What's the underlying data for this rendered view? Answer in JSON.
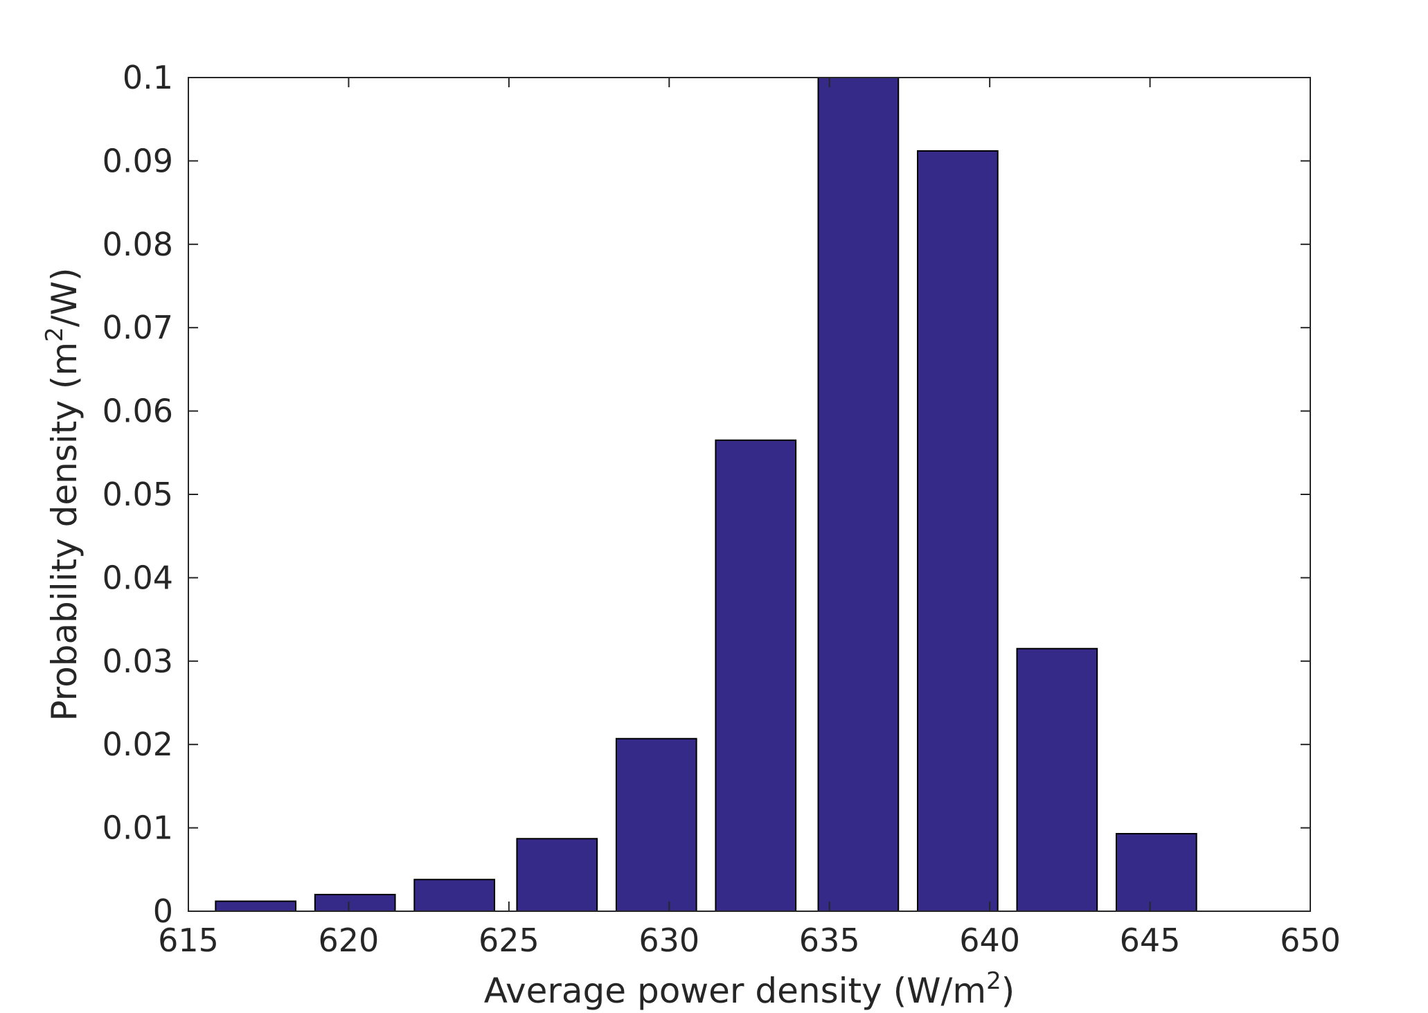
{
  "chart_data": {
    "type": "bar",
    "xlabel": "Average power density (W/m",
    "xlabel_sup": "2",
    "xlabel_suffix": ")",
    "ylabel": "Probability density (m",
    "ylabel_sup": "2",
    "ylabel_suffix": "/W)",
    "xlim": [
      615,
      650
    ],
    "ylim": [
      0,
      0.1
    ],
    "xticks": [
      615,
      620,
      625,
      630,
      635,
      640,
      645,
      650
    ],
    "yticks": [
      0,
      0.01,
      0.02,
      0.03,
      0.04,
      0.05,
      0.06,
      0.07,
      0.08,
      0.09,
      0.1
    ],
    "ytick_labels": [
      "0",
      "0.01",
      "0.02",
      "0.03",
      "0.04",
      "0.05",
      "0.06",
      "0.07",
      "0.08",
      "0.09",
      "0.1"
    ],
    "bin_width": 3.125,
    "bar_width_fraction": 0.8,
    "x": [
      617.1,
      620.2,
      623.3,
      626.5,
      629.6,
      632.7,
      635.9,
      639.0,
      642.1,
      645.2
    ],
    "values": [
      0.0012,
      0.002,
      0.0038,
      0.0087,
      0.0207,
      0.0565,
      0.1,
      0.0912,
      0.0315,
      0.0093
    ],
    "grid": false,
    "box": true,
    "colors": {
      "bar_fill": "#352a87",
      "bar_edge": "#000000",
      "axis": "#262626",
      "text": "#262626"
    }
  }
}
